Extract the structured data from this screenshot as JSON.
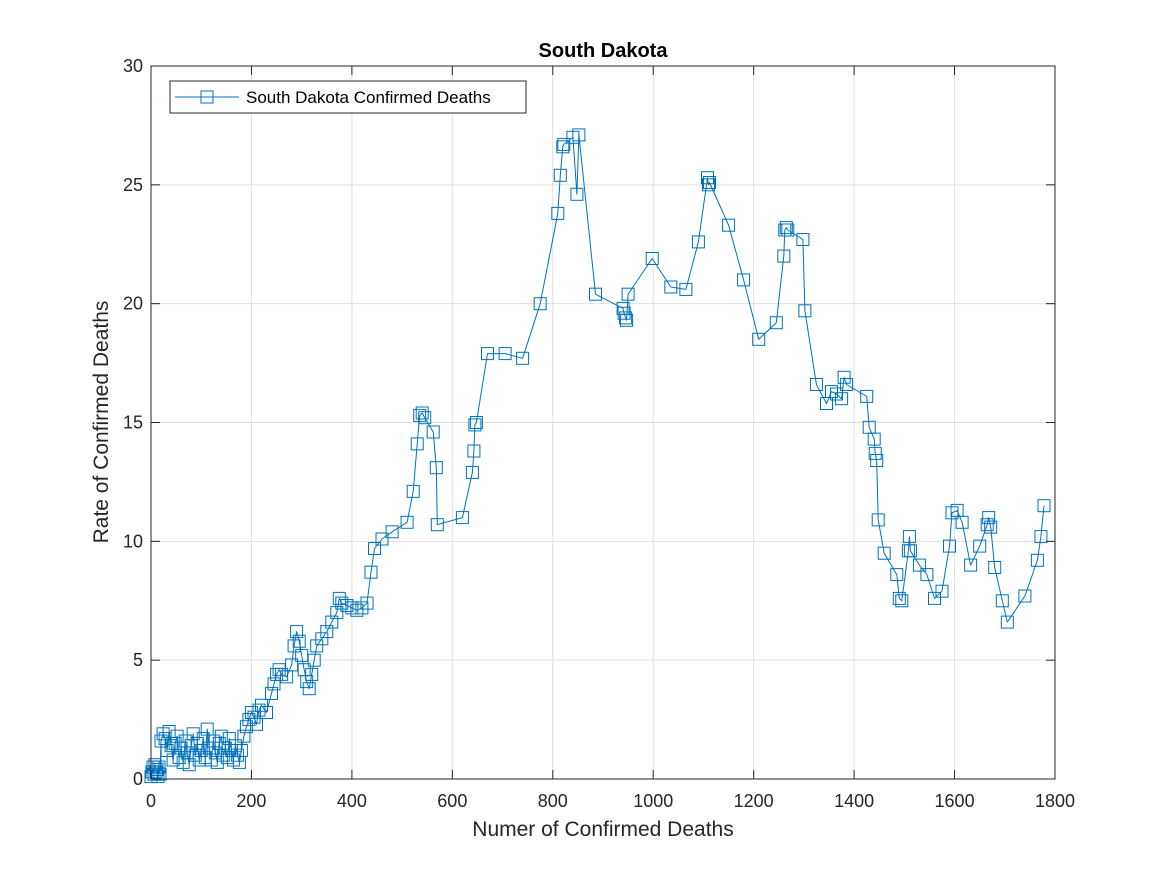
{
  "chart_data": {
    "type": "line",
    "title": "South Dakota",
    "xlabel": "Numer of Confirmed Deaths",
    "ylabel": "Rate of Confirmed Deaths",
    "xlim": [
      0,
      1800
    ],
    "ylim": [
      0,
      30
    ],
    "xticks": [
      0,
      200,
      400,
      600,
      800,
      1000,
      1200,
      1400,
      1600,
      1800
    ],
    "yticks": [
      0,
      5,
      10,
      15,
      20,
      25,
      30
    ],
    "grid": true,
    "legend_placement": "top-left",
    "color": "#0072BD",
    "marker": "square",
    "series": [
      {
        "name": "South Dakota Confirmed Deaths",
        "x": [
          0,
          2,
          4,
          6,
          8,
          10,
          12,
          14,
          16,
          18,
          20,
          24,
          28,
          32,
          36,
          40,
          44,
          48,
          52,
          56,
          60,
          64,
          68,
          72,
          76,
          80,
          84,
          88,
          92,
          96,
          100,
          104,
          108,
          112,
          116,
          120,
          124,
          128,
          132,
          136,
          140,
          144,
          148,
          152,
          156,
          160,
          164,
          168,
          172,
          176,
          180,
          185,
          190,
          195,
          200,
          205,
          210,
          215,
          220,
          230,
          240,
          245,
          250,
          255,
          260,
          270,
          280,
          285,
          290,
          295,
          300,
          305,
          310,
          315,
          320,
          325,
          330,
          340,
          350,
          360,
          370,
          375,
          380,
          390,
          400,
          410,
          420,
          430,
          438,
          445,
          460,
          480,
          510,
          522,
          530,
          535,
          540,
          545,
          562,
          568,
          570,
          620,
          640,
          643,
          645,
          648,
          670,
          705,
          740,
          775,
          810,
          815,
          820,
          822,
          840,
          848,
          852,
          885,
          940,
          942,
          945,
          947,
          950,
          998,
          1035,
          1065,
          1090,
          1108,
          1110,
          1112,
          1150,
          1180,
          1210,
          1245,
          1260,
          1262,
          1265,
          1268,
          1298,
          1302,
          1325,
          1345,
          1355,
          1365,
          1375,
          1380,
          1385,
          1425,
          1430,
          1440,
          1442,
          1445,
          1448,
          1460,
          1485,
          1490,
          1495,
          1508,
          1510,
          1512,
          1530,
          1545,
          1560,
          1575,
          1590,
          1595,
          1605,
          1615,
          1632,
          1650,
          1665,
          1668,
          1672,
          1680,
          1695,
          1705,
          1740,
          1765,
          1772,
          1778
        ],
        "y": [
          0.1,
          0.3,
          0.5,
          0.2,
          0.6,
          0.3,
          0.4,
          0.1,
          0.5,
          0.2,
          1.6,
          1.9,
          1.7,
          1.2,
          2.0,
          1.4,
          0.8,
          1.5,
          1.8,
          0.9,
          1.3,
          0.7,
          1.6,
          1.1,
          0.6,
          1.4,
          1.9,
          1.0,
          1.5,
          0.8,
          1.2,
          1.7,
          0.9,
          2.1,
          1.3,
          0.8,
          1.6,
          1.1,
          0.7,
          1.5,
          1.8,
          1.0,
          1.3,
          0.9,
          1.7,
          1.2,
          0.8,
          1.4,
          1.0,
          0.7,
          1.2,
          1.8,
          2.2,
          2.5,
          2.8,
          2.6,
          2.3,
          2.9,
          3.1,
          2.8,
          3.6,
          4.0,
          4.4,
          4.6,
          4.4,
          4.3,
          4.8,
          5.6,
          6.2,
          5.8,
          5.2,
          4.6,
          4.1,
          3.8,
          4.4,
          5.0,
          5.6,
          5.9,
          6.2,
          6.6,
          7.0,
          7.6,
          7.4,
          7.3,
          7.2,
          7.1,
          7.2,
          7.4,
          8.7,
          9.7,
          10.1,
          10.4,
          10.8,
          12.1,
          14.1,
          15.3,
          15.4,
          15.2,
          14.6,
          13.1,
          10.7,
          11.0,
          12.9,
          13.8,
          14.9,
          15.0,
          17.9,
          17.9,
          17.7,
          20.0,
          23.8,
          25.4,
          26.6,
          26.7,
          27.0,
          24.6,
          27.1,
          20.4,
          19.8,
          19.6,
          19.4,
          19.3,
          20.4,
          21.9,
          20.7,
          20.6,
          22.6,
          25.3,
          25.0,
          25.1,
          23.3,
          21.0,
          18.5,
          19.2,
          22.0,
          23.1,
          23.2,
          23.1,
          22.7,
          19.7,
          16.6,
          15.8,
          16.3,
          16.2,
          16.0,
          16.9,
          16.6,
          16.1,
          14.8,
          14.3,
          13.7,
          13.4,
          10.9,
          9.5,
          8.6,
          7.6,
          7.5,
          9.6,
          10.2,
          9.6,
          9.0,
          8.6,
          7.6,
          7.9,
          9.8,
          11.2,
          11.3,
          10.8,
          9.0,
          9.8,
          10.7,
          11.0,
          10.6,
          8.9,
          7.5,
          6.6,
          7.7,
          9.2,
          10.2,
          11.5
        ]
      }
    ]
  }
}
